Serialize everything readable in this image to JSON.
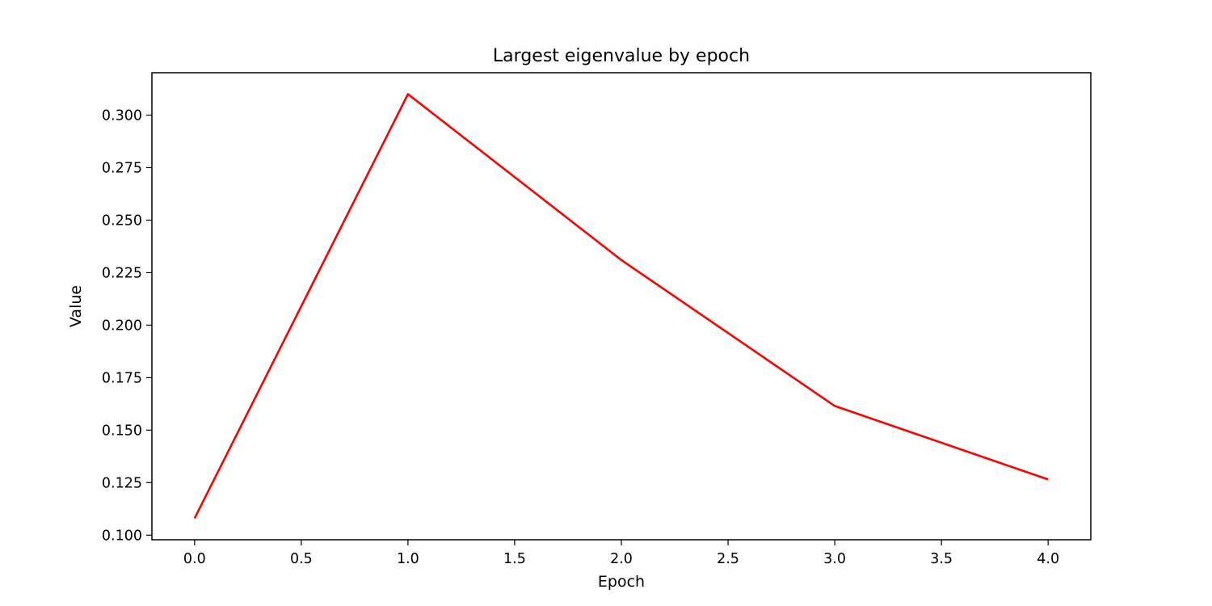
{
  "chart_data": {
    "type": "line",
    "title": "Largest eigenvalue by epoch",
    "xlabel": "Epoch",
    "ylabel": "Value",
    "xlim": [
      -0.2,
      4.2
    ],
    "ylim": [
      0.0978,
      0.3202
    ],
    "xticks": [
      0.0,
      0.5,
      1.0,
      1.5,
      2.0,
      2.5,
      3.0,
      3.5,
      4.0
    ],
    "xtick_labels": [
      "0.0",
      "0.5",
      "1.0",
      "1.5",
      "2.0",
      "2.5",
      "3.0",
      "3.5",
      "4.0"
    ],
    "yticks": [
      0.1,
      0.125,
      0.15,
      0.175,
      0.2,
      0.225,
      0.25,
      0.275,
      0.3
    ],
    "ytick_labels": [
      "0.100",
      "0.125",
      "0.150",
      "0.175",
      "0.200",
      "0.225",
      "0.250",
      "0.275",
      "0.300"
    ],
    "grid": false,
    "series": [
      {
        "x": [
          0,
          1,
          2,
          3,
          4
        ],
        "values": [
          0.108,
          0.31,
          0.231,
          0.1615,
          0.1265
        ],
        "color": "#ff0000"
      }
    ]
  }
}
